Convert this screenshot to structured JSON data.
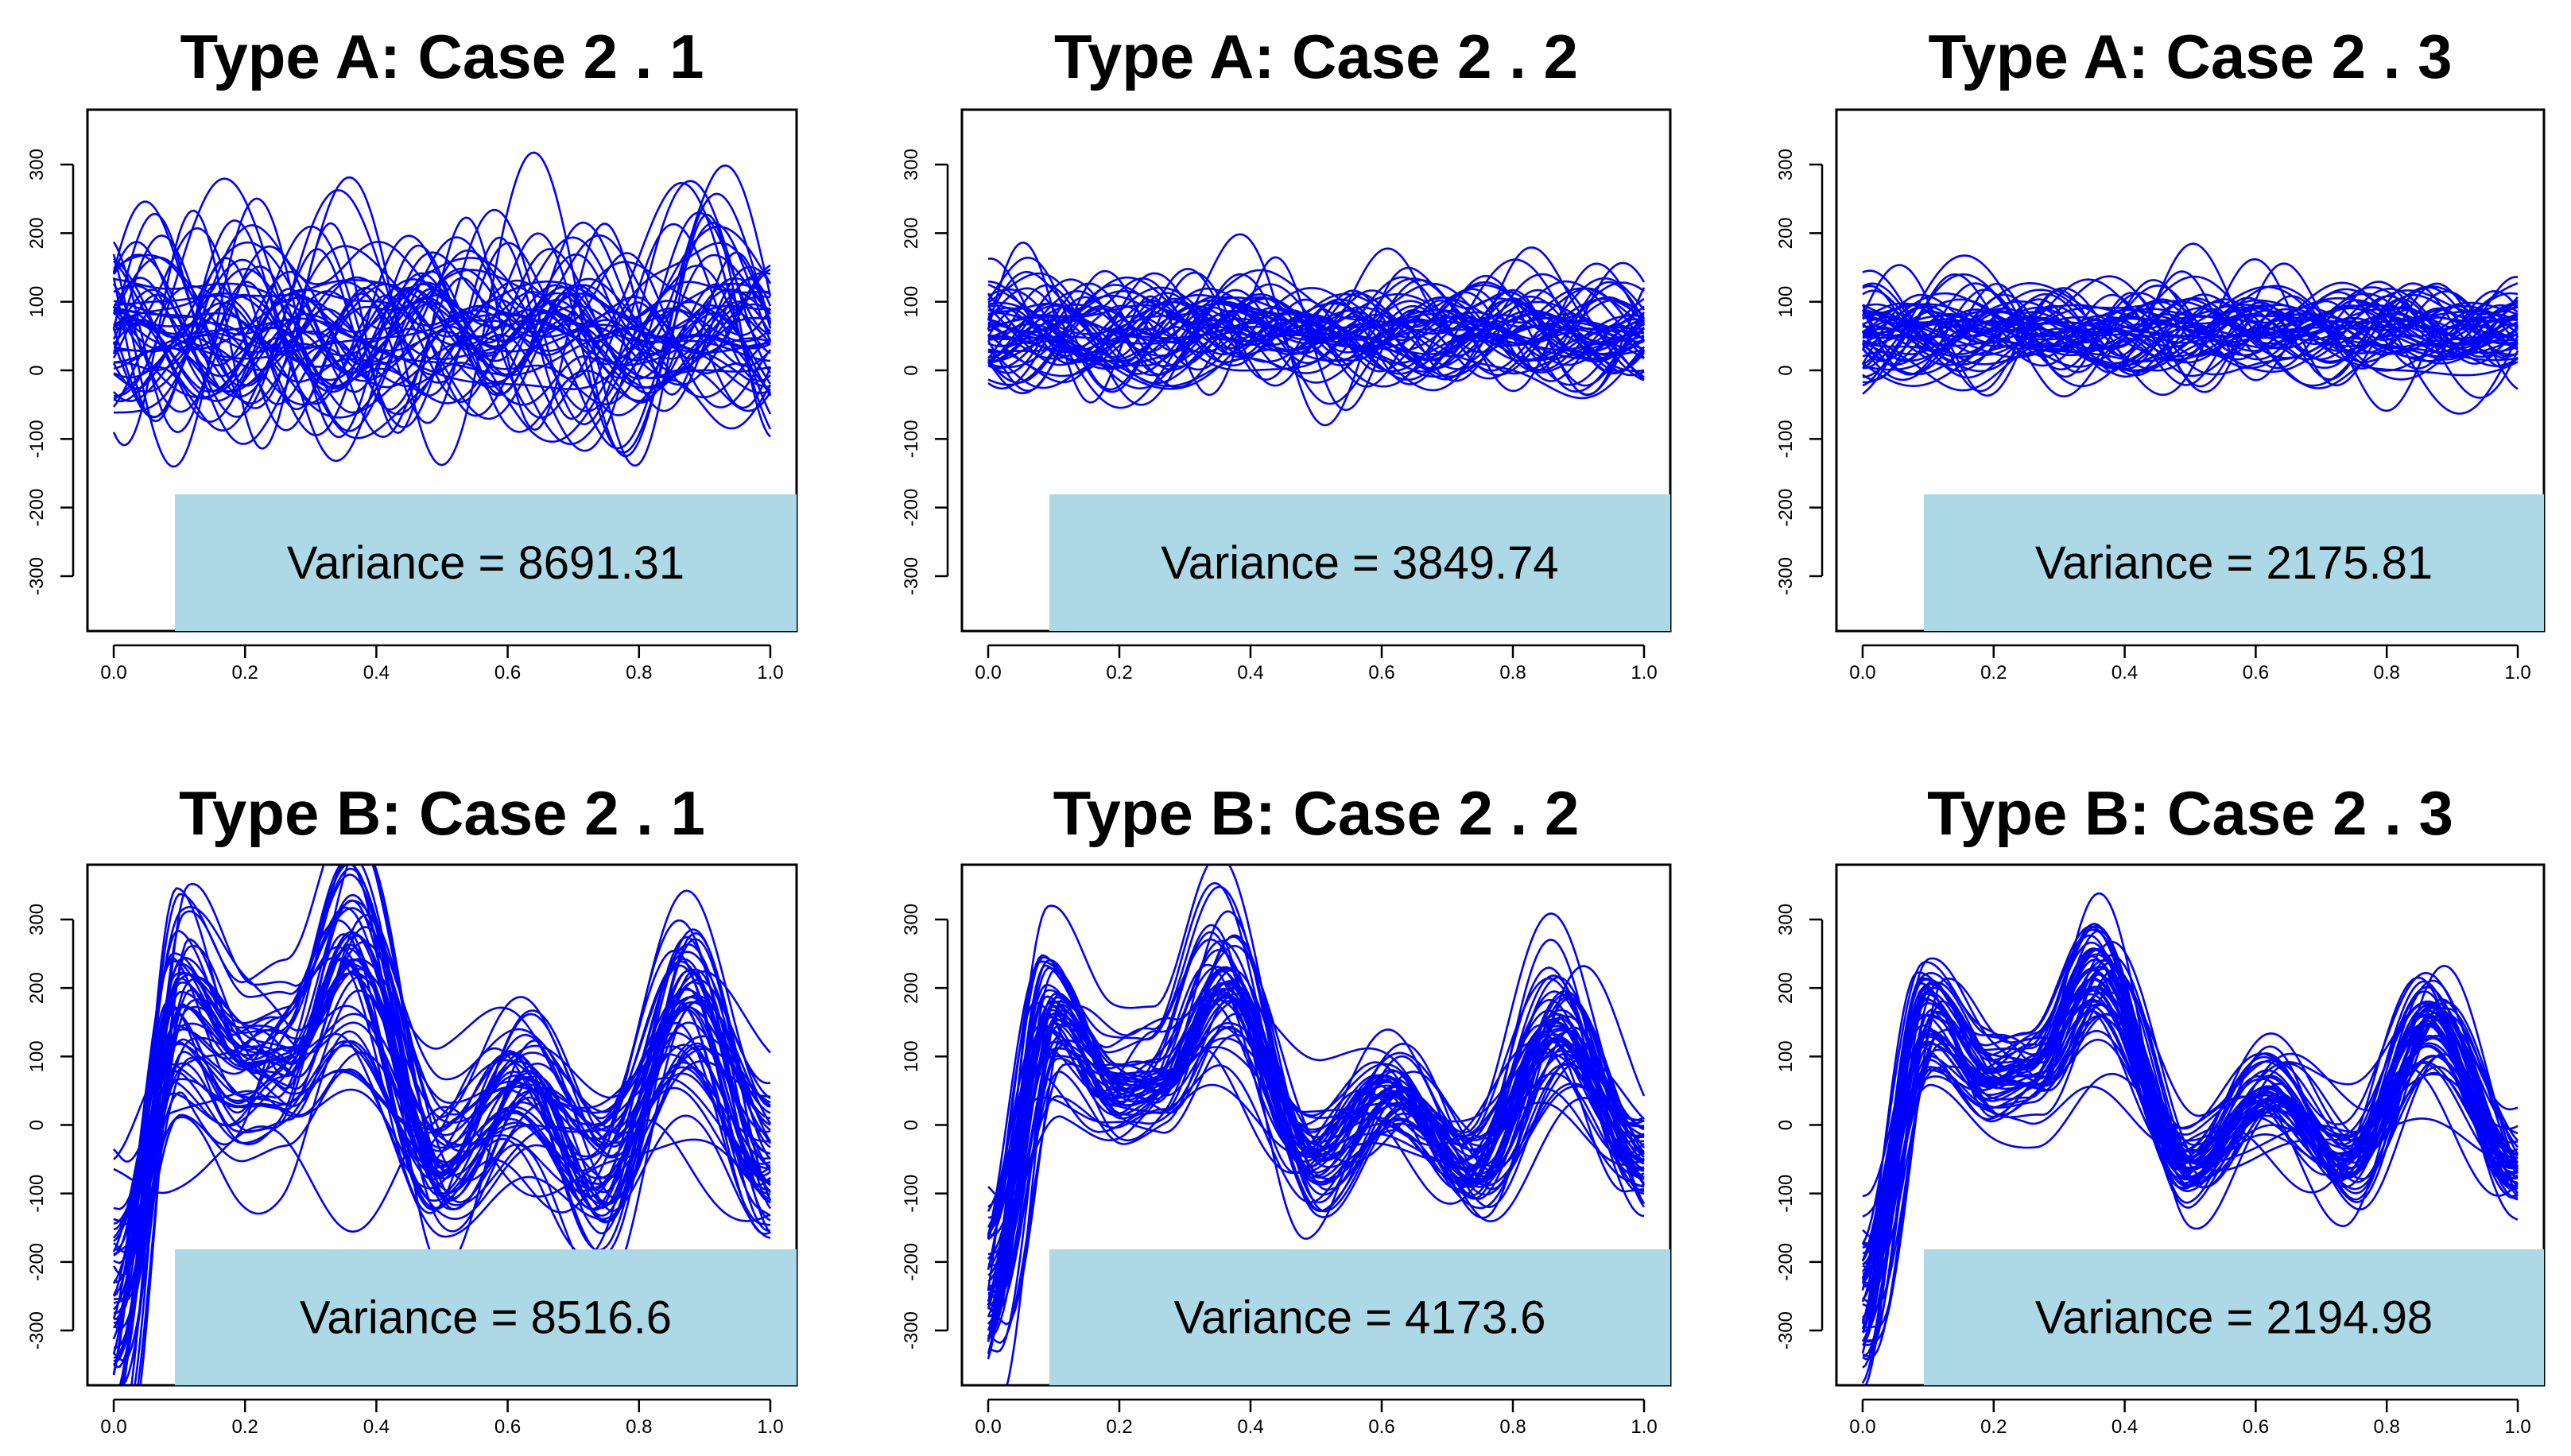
{
  "figure": {
    "line_color": "#0000ff",
    "annotation_fill": "#add8e6",
    "background": "#ffffff"
  },
  "chart_data": [
    {
      "type": "line",
      "title": "Type A: Case 2 . 1",
      "annotation": "Variance = 8691.31",
      "variance": 8691.31,
      "curve_kind": "A",
      "curve_count": 50,
      "xlim": [
        0,
        1
      ],
      "ylim": [
        -380,
        380
      ],
      "xticks": [
        "0.0",
        "0.2",
        "0.4",
        "0.6",
        "0.8",
        "1.0"
      ],
      "xtick_values": [
        0,
        0.2,
        0.4,
        0.6,
        0.8,
        1
      ],
      "yticks": [
        "-300",
        "-200",
        "-100",
        "0",
        "100",
        "200",
        "300"
      ],
      "ytick_values": [
        -300,
        -200,
        -100,
        0,
        100,
        200,
        300
      ]
    },
    {
      "type": "line",
      "title": "Type A: Case 2 . 2",
      "annotation": "Variance = 3849.74",
      "variance": 3849.74,
      "curve_kind": "A",
      "curve_count": 50,
      "xlim": [
        0,
        1
      ],
      "ylim": [
        -380,
        380
      ],
      "xticks": [
        "0.0",
        "0.2",
        "0.4",
        "0.6",
        "0.8",
        "1.0"
      ],
      "xtick_values": [
        0,
        0.2,
        0.4,
        0.6,
        0.8,
        1
      ],
      "yticks": [
        "-300",
        "-200",
        "-100",
        "0",
        "100",
        "200",
        "300"
      ],
      "ytick_values": [
        -300,
        -200,
        -100,
        0,
        100,
        200,
        300
      ]
    },
    {
      "type": "line",
      "title": "Type A: Case 2 . 3",
      "annotation": "Variance = 2175.81",
      "variance": 2175.81,
      "curve_kind": "A",
      "curve_count": 50,
      "xlim": [
        0,
        1
      ],
      "ylim": [
        -380,
        380
      ],
      "xticks": [
        "0.0",
        "0.2",
        "0.4",
        "0.6",
        "0.8",
        "1.0"
      ],
      "xtick_values": [
        0,
        0.2,
        0.4,
        0.6,
        0.8,
        1
      ],
      "yticks": [
        "-300",
        "-200",
        "-100",
        "0",
        "100",
        "200",
        "300"
      ],
      "ytick_values": [
        -300,
        -200,
        -100,
        0,
        100,
        200,
        300
      ]
    },
    {
      "type": "line",
      "title": "Type B: Case 2 . 1",
      "annotation": "Variance = 8516.6",
      "variance": 8516.6,
      "curve_kind": "B",
      "curve_count": 50,
      "xlim": [
        0,
        1
      ],
      "ylim": [
        -380,
        380
      ],
      "xticks": [
        "0.0",
        "0.2",
        "0.4",
        "0.6",
        "0.8",
        "1.0"
      ],
      "xtick_values": [
        0,
        0.2,
        0.4,
        0.6,
        0.8,
        1
      ],
      "yticks": [
        "-300",
        "-200",
        "-100",
        "0",
        "100",
        "200",
        "300"
      ],
      "ytick_values": [
        -300,
        -200,
        -100,
        0,
        100,
        200,
        300
      ]
    },
    {
      "type": "line",
      "title": "Type B: Case 2 . 2",
      "annotation": "Variance = 4173.6",
      "variance": 4173.6,
      "curve_kind": "B",
      "curve_count": 50,
      "xlim": [
        0,
        1
      ],
      "ylim": [
        -380,
        380
      ],
      "xticks": [
        "0.0",
        "0.2",
        "0.4",
        "0.6",
        "0.8",
        "1.0"
      ],
      "xtick_values": [
        0,
        0.2,
        0.4,
        0.6,
        0.8,
        1
      ],
      "yticks": [
        "-300",
        "-200",
        "-100",
        "0",
        "100",
        "200",
        "300"
      ],
      "ytick_values": [
        -300,
        -200,
        -100,
        0,
        100,
        200,
        300
      ]
    },
    {
      "type": "line",
      "title": "Type B: Case 2 . 3",
      "annotation": "Variance = 2194.98",
      "variance": 2194.98,
      "curve_kind": "B",
      "curve_count": 50,
      "xlim": [
        0,
        1
      ],
      "ylim": [
        -380,
        380
      ],
      "xticks": [
        "0.0",
        "0.2",
        "0.4",
        "0.6",
        "0.8",
        "1.0"
      ],
      "xtick_values": [
        0,
        0.2,
        0.4,
        0.6,
        0.8,
        1
      ],
      "yticks": [
        "-300",
        "-200",
        "-100",
        "0",
        "100",
        "200",
        "300"
      ],
      "ytick_values": [
        -300,
        -200,
        -100,
        0,
        100,
        200,
        300
      ]
    }
  ]
}
